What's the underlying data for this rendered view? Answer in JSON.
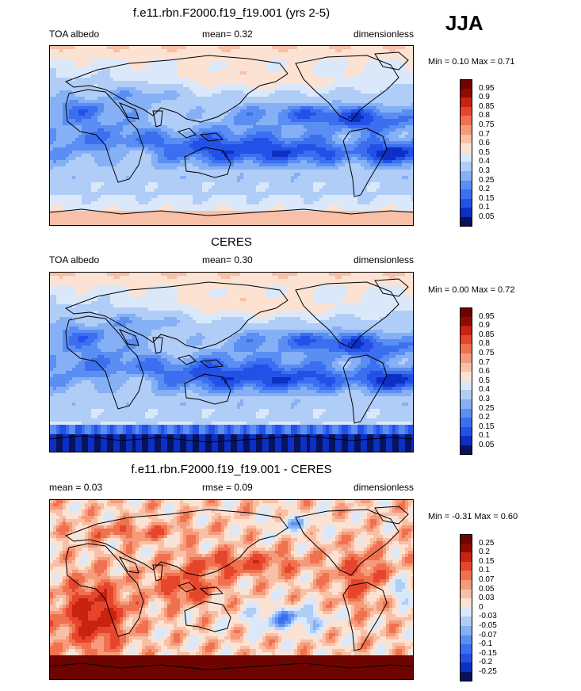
{
  "season": "JJA",
  "panels": [
    {
      "id": "model",
      "title": "f.e11.rbn.F2000.f19_f19.001 (yrs 2-5)",
      "left_label": "TOA albedo",
      "center_label": "mean=  0.32",
      "right_label": "dimensionless",
      "minmax": "Min =  0.10 Max =  0.71",
      "legend": [
        "0.95",
        "0.9",
        "0.85",
        "0.8",
        "0.75",
        "0.7",
        "0.6",
        "0.5",
        "0.4",
        "0.3",
        "0.25",
        "0.2",
        "0.15",
        "0.1",
        "0.05"
      ]
    },
    {
      "id": "obs",
      "title": "CERES",
      "left_label": "TOA albedo",
      "center_label": "mean=  0.30",
      "right_label": "dimensionless",
      "minmax": "Min =  0.00 Max =  0.72",
      "legend": [
        "0.95",
        "0.9",
        "0.85",
        "0.8",
        "0.75",
        "0.7",
        "0.6",
        "0.5",
        "0.4",
        "0.3",
        "0.25",
        "0.2",
        "0.15",
        "0.1",
        "0.05"
      ]
    },
    {
      "id": "diff",
      "title": "f.e11.rbn.F2000.f19_f19.001 - CERES",
      "left_label": "mean =  0.03",
      "center_label": "rmse =  0.09",
      "right_label": "dimensionless",
      "minmax": "Min = -0.31 Max =  0.60",
      "legend": [
        "0.25",
        "0.2",
        "0.15",
        "0.1",
        "0.07",
        "0.05",
        "0.03",
        "0",
        "-0.03",
        "-0.05",
        "-0.07",
        "-0.1",
        "-0.15",
        "-0.2",
        "-0.25"
      ]
    }
  ],
  "colors": {
    "scale": [
      "#07135f",
      "#0c2fc4",
      "#2351e8",
      "#3b6ff0",
      "#5a8ef2",
      "#86b0f5",
      "#b0cdf7",
      "#dbe8fa",
      "#fbe2d2",
      "#f8c0a6",
      "#f59a7a",
      "#f0714f",
      "#e6452c",
      "#c9220f",
      "#8f0a00",
      "#6e0400"
    ],
    "land": "#000000"
  },
  "chart_data": [
    {
      "type": "heatmap",
      "title": "f.e11.rbn.F2000.f19_f19.001 (yrs 2-5)",
      "variable": "TOA albedo",
      "units": "dimensionless",
      "mean": 0.32,
      "min": 0.1,
      "max": 0.71,
      "levels": [
        0.05,
        0.1,
        0.15,
        0.2,
        0.25,
        0.3,
        0.4,
        0.5,
        0.6,
        0.7,
        0.75,
        0.8,
        0.85,
        0.9,
        0.95
      ]
    },
    {
      "type": "heatmap",
      "title": "CERES",
      "variable": "TOA albedo",
      "units": "dimensionless",
      "mean": 0.3,
      "min": 0.0,
      "max": 0.72,
      "levels": [
        0.05,
        0.1,
        0.15,
        0.2,
        0.25,
        0.3,
        0.4,
        0.5,
        0.6,
        0.7,
        0.75,
        0.8,
        0.85,
        0.9,
        0.95
      ]
    },
    {
      "type": "heatmap",
      "title": "f.e11.rbn.F2000.f19_f19.001 - CERES",
      "units": "dimensionless",
      "mean": 0.03,
      "rmse": 0.09,
      "min": -0.31,
      "max": 0.6,
      "levels": [
        -0.25,
        -0.2,
        -0.15,
        -0.1,
        -0.07,
        -0.05,
        -0.03,
        0,
        0.03,
        0.05,
        0.07,
        0.1,
        0.15,
        0.2,
        0.25
      ]
    }
  ]
}
